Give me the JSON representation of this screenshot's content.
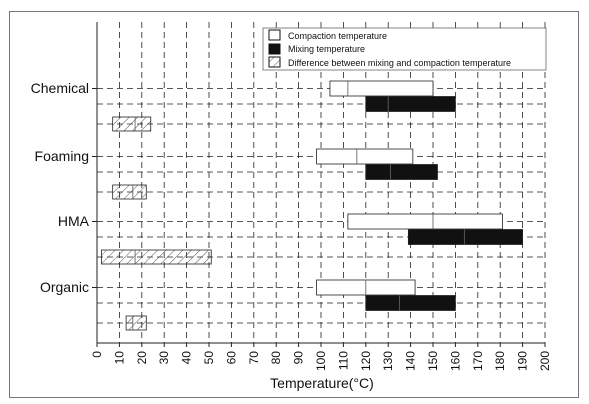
{
  "chart_data": {
    "type": "bar",
    "subtype": "floating-range-horizontal",
    "title": "",
    "xlabel": "Temperature(°C)",
    "ylabel": "",
    "xlim": [
      0,
      200
    ],
    "xticks": [
      0,
      10,
      20,
      30,
      40,
      50,
      60,
      70,
      80,
      90,
      100,
      110,
      120,
      130,
      140,
      150,
      160,
      170,
      180,
      190,
      200
    ],
    "grid": true,
    "legend_position": "top-right",
    "categories": [
      "Chemical",
      "Foaming",
      "HMA",
      "Organic"
    ],
    "series": [
      {
        "name": "Compaction temperature",
        "color": "#ffffff",
        "ranges": [
          [
            104,
            150
          ],
          [
            98,
            141
          ],
          [
            112,
            181
          ],
          [
            98,
            142
          ]
        ],
        "midpoints": [
          112,
          116,
          150,
          120
        ]
      },
      {
        "name": "Mixing temperature",
        "color": "#111111",
        "ranges": [
          [
            120,
            160
          ],
          [
            120,
            152
          ],
          [
            139,
            190
          ],
          [
            120,
            160
          ]
        ],
        "midpoints": [
          130,
          131,
          164,
          135
        ]
      },
      {
        "name": "Difference between mixing and compaction temperature",
        "pattern": "hatch",
        "ranges": [
          [
            7,
            24
          ],
          [
            7,
            22
          ],
          [
            2,
            51
          ],
          [
            13,
            22
          ]
        ],
        "midpoints": [
          17,
          16,
          17,
          16
        ]
      }
    ]
  }
}
